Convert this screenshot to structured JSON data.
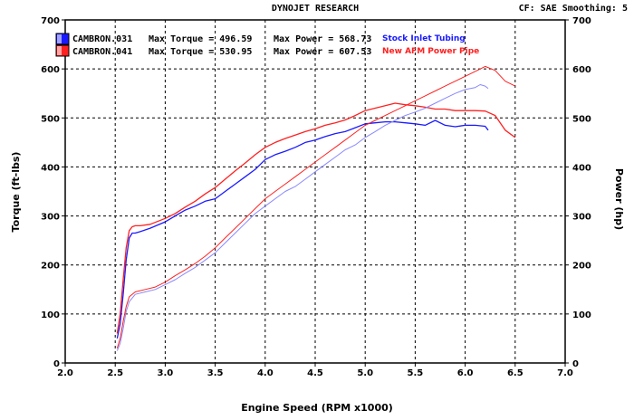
{
  "header": {
    "title": "DYNOJET RESEARCH",
    "correction": "CF: SAE  Smoothing: 5"
  },
  "chart_data": {
    "type": "line",
    "xlabel": "Engine Speed (RPM x1000)",
    "ylabel_left": "Torque (ft-lbs)",
    "ylabel_right": "Power (hp)",
    "xlim": [
      2.0,
      7.0
    ],
    "ylim": [
      0,
      700
    ],
    "x_ticks": [
      "2.0",
      "2.5",
      "3.0",
      "3.5",
      "4.0",
      "4.5",
      "5.0",
      "5.5",
      "6.0",
      "6.5",
      "7.0"
    ],
    "y_ticks_left": [
      "0",
      "100",
      "200",
      "300",
      "400",
      "500",
      "600",
      "700"
    ],
    "y_ticks_right": [
      "0",
      "100",
      "200",
      "300",
      "400",
      "500",
      "600",
      "700"
    ],
    "grid": true,
    "legend_position": "top-left",
    "legend": [
      {
        "run": "CAMBRON.031",
        "max_torque_label": "Max Torque = 496.59",
        "max_power_label": "Max Power = 568.73",
        "label": "Stock Inlet Tubing",
        "color": "#1a1aff"
      },
      {
        "run": "CAMBRON.041",
        "max_torque_label": "Max Torque = 530.95",
        "max_power_label": "Max Power = 607.53",
        "label": "New AFM Power Pipe",
        "color": "#ff2020"
      }
    ],
    "series": [
      {
        "name": "CAMBRON.031 Torque",
        "color": "#1a1aff",
        "width": 1.3,
        "x": [
          2.52,
          2.55,
          2.58,
          2.61,
          2.64,
          2.67,
          2.7,
          2.75,
          2.85,
          3.0,
          3.1,
          3.2,
          3.3,
          3.4,
          3.5,
          3.6,
          3.7,
          3.8,
          3.9,
          4.0,
          4.1,
          4.2,
          4.3,
          4.4,
          4.5,
          4.6,
          4.7,
          4.8,
          4.9,
          5.0,
          5.1,
          5.2,
          5.3,
          5.4,
          5.5,
          5.6,
          5.7,
          5.8,
          5.9,
          6.0,
          6.1,
          6.2,
          6.23
        ],
        "y": [
          50,
          80,
          140,
          210,
          255,
          265,
          265,
          268,
          275,
          288,
          300,
          312,
          320,
          330,
          335,
          350,
          365,
          380,
          395,
          415,
          425,
          432,
          440,
          450,
          455,
          462,
          468,
          472,
          480,
          488,
          490,
          492,
          492,
          490,
          488,
          485,
          495,
          485,
          482,
          485,
          485,
          483,
          475
        ]
      },
      {
        "name": "CAMBRON.041 Torque",
        "color": "#ff2020",
        "width": 1.3,
        "x": [
          2.52,
          2.55,
          2.58,
          2.61,
          2.64,
          2.67,
          2.7,
          2.75,
          2.85,
          3.0,
          3.1,
          3.2,
          3.3,
          3.4,
          3.5,
          3.6,
          3.7,
          3.8,
          3.9,
          4.0,
          4.1,
          4.2,
          4.3,
          4.4,
          4.5,
          4.6,
          4.7,
          4.8,
          4.9,
          5.0,
          5.1,
          5.2,
          5.3,
          5.4,
          5.5,
          5.6,
          5.7,
          5.8,
          5.9,
          6.0,
          6.1,
          6.2,
          6.3,
          6.4,
          6.5
        ],
        "y": [
          60,
          100,
          170,
          235,
          270,
          278,
          280,
          280,
          283,
          295,
          305,
          318,
          330,
          345,
          358,
          375,
          392,
          408,
          425,
          440,
          450,
          458,
          465,
          472,
          478,
          485,
          490,
          496,
          505,
          515,
          520,
          525,
          530,
          527,
          525,
          522,
          518,
          518,
          515,
          515,
          515,
          514,
          505,
          475,
          460
        ]
      },
      {
        "name": "CAMBRON.031 Power",
        "color": "#8888ff",
        "width": 1,
        "x": [
          2.52,
          2.55,
          2.58,
          2.61,
          2.64,
          2.7,
          2.8,
          2.9,
          3.0,
          3.1,
          3.2,
          3.3,
          3.4,
          3.5,
          3.6,
          3.7,
          3.8,
          3.9,
          4.0,
          4.1,
          4.2,
          4.3,
          4.4,
          4.5,
          4.6,
          4.7,
          4.8,
          4.9,
          5.0,
          5.1,
          5.2,
          5.3,
          5.4,
          5.5,
          5.6,
          5.7,
          5.8,
          5.9,
          6.0,
          6.1,
          6.15,
          6.2,
          6.23
        ],
        "y": [
          25,
          40,
          70,
          105,
          125,
          140,
          145,
          150,
          160,
          170,
          183,
          195,
          210,
          225,
          245,
          265,
          285,
          305,
          320,
          335,
          350,
          360,
          375,
          390,
          405,
          420,
          435,
          445,
          460,
          472,
          485,
          495,
          505,
          512,
          520,
          530,
          540,
          550,
          558,
          562,
          568,
          565,
          560
        ]
      },
      {
        "name": "CAMBRON.041 Power",
        "color": "#ff2020",
        "width": 1,
        "x": [
          2.52,
          2.55,
          2.58,
          2.61,
          2.64,
          2.7,
          2.8,
          2.9,
          3.0,
          3.1,
          3.2,
          3.3,
          3.4,
          3.5,
          3.6,
          3.7,
          3.8,
          3.9,
          4.0,
          4.1,
          4.2,
          4.3,
          4.4,
          4.5,
          4.6,
          4.7,
          4.8,
          4.9,
          5.0,
          5.1,
          5.2,
          5.3,
          5.4,
          5.5,
          5.6,
          5.7,
          5.8,
          5.9,
          6.0,
          6.1,
          6.2,
          6.3,
          6.4,
          6.5
        ],
        "y": [
          30,
          50,
          85,
          115,
          135,
          145,
          150,
          155,
          165,
          178,
          190,
          203,
          218,
          235,
          255,
          275,
          295,
          315,
          335,
          350,
          365,
          380,
          395,
          410,
          425,
          440,
          455,
          470,
          485,
          495,
          505,
          515,
          525,
          535,
          545,
          555,
          565,
          575,
          585,
          595,
          605,
          597,
          575,
          565
        ]
      }
    ]
  }
}
